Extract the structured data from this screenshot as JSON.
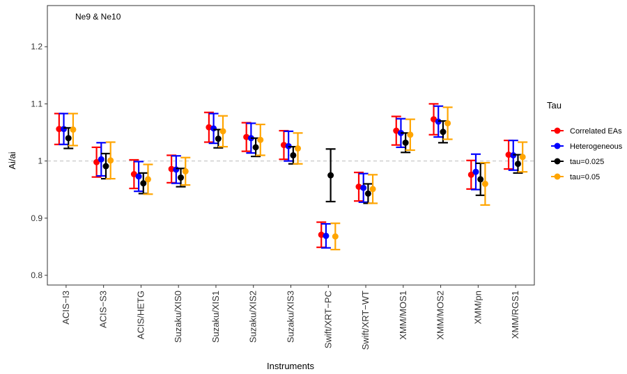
{
  "chart_data": {
    "type": "errorbar",
    "annotation": "Ne9 & Ne10",
    "xlabel": "Instruments",
    "ylabel": "Ai/ai",
    "legend_title": "Tau",
    "legend_position": "right",
    "reference_line": 1.0,
    "categories": [
      "ACIS−I3",
      "ACIS−S3",
      "ACIS/HETG",
      "Suzaku/XIS0",
      "Suzaku/XIS1",
      "Suzaku/XIS2",
      "Suzaku/XIS3",
      "Swift/XRT−PC",
      "Swift/XRT−WT",
      "XMM/MOS1",
      "XMM/MOS2",
      "XMM/pn",
      "XMM/RGS1"
    ],
    "ylim": [
      0.783,
      1.272
    ],
    "yticks": [
      0.8,
      0.9,
      1.0,
      1.1,
      1.2
    ],
    "series": [
      {
        "name": "Correlated EAs",
        "color": "#ff0000",
        "values": [
          1.056,
          0.998,
          0.977,
          0.986,
          1.059,
          1.042,
          1.028,
          0.871,
          0.955,
          1.053,
          1.073,
          0.976,
          1.011
        ],
        "errors": [
          0.027,
          0.026,
          0.025,
          0.024,
          0.026,
          0.025,
          0.025,
          0.022,
          0.025,
          0.025,
          0.027,
          0.025,
          0.025
        ]
      },
      {
        "name": "Heterogeneous",
        "color": "#0000ff",
        "values": [
          1.056,
          1.003,
          0.973,
          0.985,
          1.057,
          1.04,
          1.026,
          0.869,
          0.953,
          1.049,
          1.069,
          0.981,
          1.01
        ],
        "errors": [
          0.027,
          0.029,
          0.026,
          0.024,
          0.026,
          0.026,
          0.026,
          0.021,
          0.025,
          0.025,
          0.027,
          0.031,
          0.026
        ]
      },
      {
        "name": "tau=0.025",
        "color": "#000000",
        "values": [
          1.04,
          0.991,
          0.961,
          0.971,
          1.039,
          1.024,
          1.01,
          0.975,
          0.943,
          1.032,
          1.051,
          0.968,
          0.995
        ],
        "errors": [
          0.018,
          0.022,
          0.018,
          0.016,
          0.016,
          0.016,
          0.015,
          0.046,
          0.017,
          0.017,
          0.019,
          0.028,
          0.016
        ]
      },
      {
        "name": "tau=0.05",
        "color": "#ffa500",
        "values": [
          1.055,
          1.001,
          0.968,
          0.982,
          1.052,
          1.037,
          1.022,
          0.868,
          0.951,
          1.046,
          1.066,
          0.96,
          1.007
        ],
        "errors": [
          0.028,
          0.032,
          0.026,
          0.024,
          0.027,
          0.027,
          0.027,
          0.023,
          0.025,
          0.027,
          0.028,
          0.037,
          0.026
        ]
      }
    ]
  }
}
